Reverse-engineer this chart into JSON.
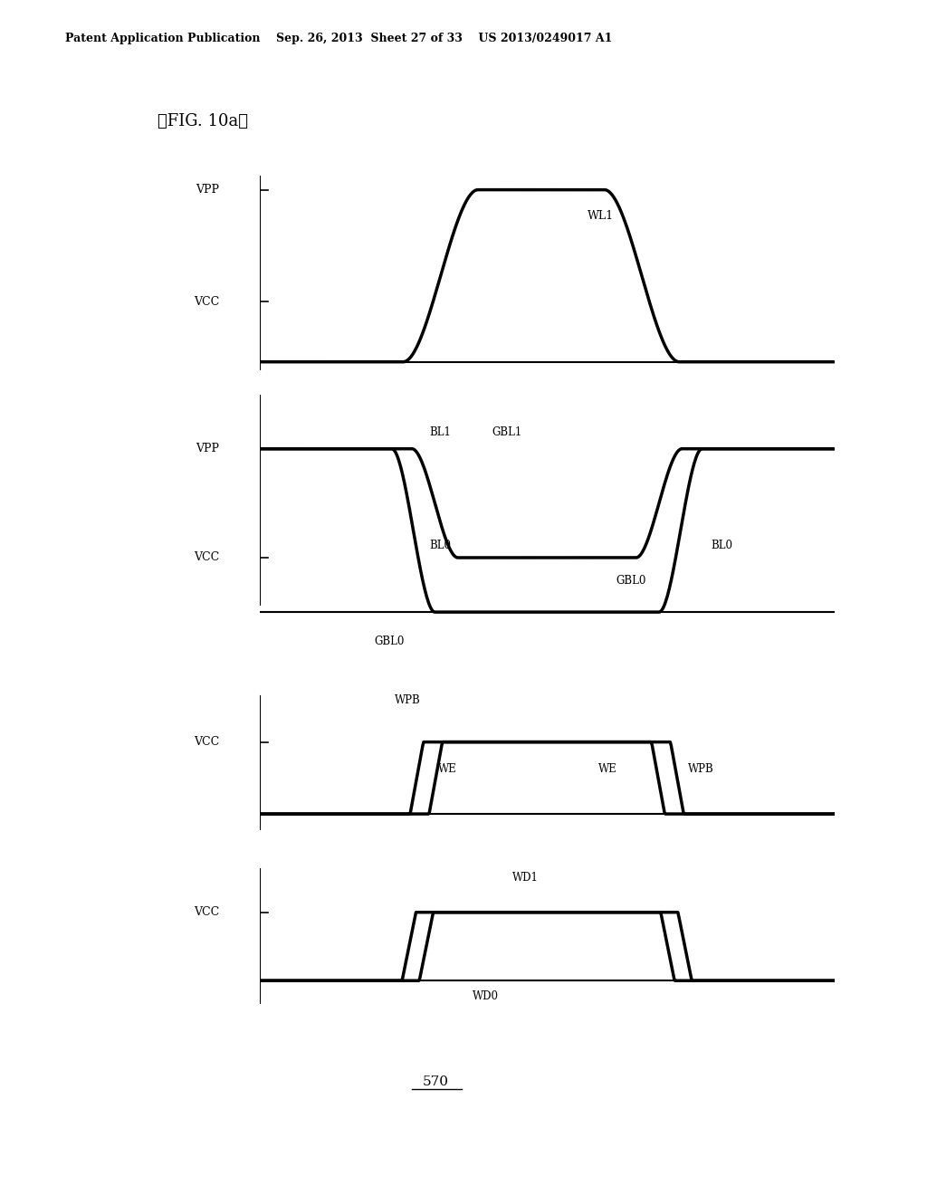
{
  "background_color": "#ffffff",
  "header_text": "Patent Application Publication    Sep. 26, 2013  Sheet 27 of 33    US 2013/0249017 A1",
  "fig_label": "』FIG. 10a【",
  "figure_label_note": "570",
  "panel1": {
    "ylabel_vpp": "VPP",
    "ylabel_vcc": "VCC",
    "vcc_level": 0.35,
    "vpp_level": 1.0
  },
  "panel2": {
    "ylabel_vpp": "VPP",
    "ylabel_vcc": "VCC",
    "vpp_level": 0.75,
    "vcc_level": 0.25
  },
  "panel3": {
    "ylabel_vcc": "VCC",
    "vcc_level": 0.65
  },
  "panel4": {
    "ylabel_vcc": "VCC",
    "vcc_level": 0.65
  }
}
